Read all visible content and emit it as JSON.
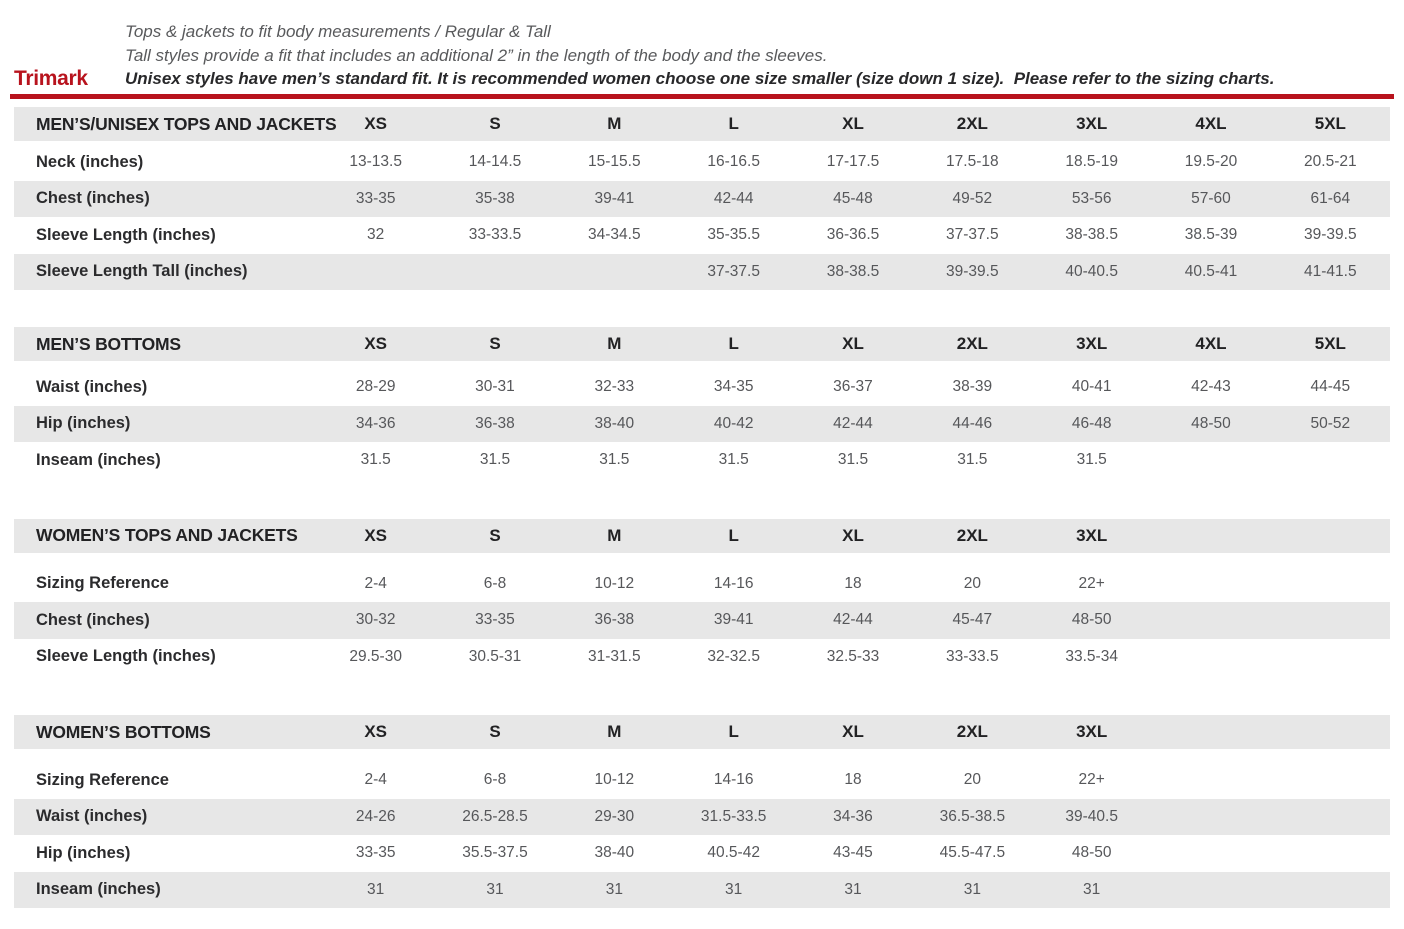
{
  "colors": {
    "brand_red": "#b8131d",
    "row_stripe": "#e7e7e7"
  },
  "brand": {
    "name": "Trimark"
  },
  "intro": {
    "line1": "Tops & jackets to fit body measurements / Regular & Tall",
    "line2": "Tall styles provide a fit that includes an additional 2” in the length of the body and the sleeves.",
    "line3": "Unisex styles have men’s standard fit. It is recommended women choose one size smaller (size down 1 size).  Please refer to the sizing charts."
  },
  "tables": [
    {
      "title": "MEN’S/UNISEX TOPS AND JACKETS",
      "sizes": [
        "XS",
        "S",
        "M",
        "L",
        "XL",
        "2XL",
        "3XL",
        "4XL",
        "5XL"
      ],
      "rows": [
        {
          "label": "Neck (inches)",
          "values": [
            "13-13.5",
            "14-14.5",
            "15-15.5",
            "16-16.5",
            "17-17.5",
            "17.5-18",
            "18.5-19",
            "19.5-20",
            "20.5-21"
          ]
        },
        {
          "label": "Chest (inches)",
          "values": [
            "33-35",
            "35-38",
            "39-41",
            "42-44",
            "45-48",
            "49-52",
            "53-56",
            "57-60",
            "61-64"
          ]
        },
        {
          "label": "Sleeve Length (inches)",
          "values": [
            "32",
            "33-33.5",
            "34-34.5",
            "35-35.5",
            "36-36.5",
            "37-37.5",
            "38-38.5",
            "38.5-39",
            "39-39.5"
          ]
        },
        {
          "label": "Sleeve Length Tall (inches)",
          "values": [
            "",
            "",
            "",
            "37-37.5",
            "38-38.5",
            "39-39.5",
            "40-40.5",
            "40.5-41",
            "41-41.5"
          ]
        }
      ]
    },
    {
      "title": "MEN’S BOTTOMS",
      "sizes": [
        "XS",
        "S",
        "M",
        "L",
        "XL",
        "2XL",
        "3XL",
        "4XL",
        "5XL"
      ],
      "rows": [
        {
          "label": "Waist (inches)",
          "values": [
            "28-29",
            "30-31",
            "32-33",
            "34-35",
            "36-37",
            "38-39",
            "40-41",
            "42-43",
            "44-45"
          ]
        },
        {
          "label": "Hip (inches)",
          "values": [
            "34-36",
            "36-38",
            "38-40",
            "40-42",
            "42-44",
            "44-46",
            "46-48",
            "48-50",
            "50-52"
          ]
        },
        {
          "label": "Inseam (inches)",
          "values": [
            "31.5",
            "31.5",
            "31.5",
            "31.5",
            "31.5",
            "31.5",
            "31.5",
            "",
            ""
          ]
        }
      ]
    },
    {
      "title": "WOMEN’S TOPS AND JACKETS",
      "sizes": [
        "XS",
        "S",
        "M",
        "L",
        "XL",
        "2XL",
        "3XL"
      ],
      "rows": [
        {
          "label": "Sizing Reference",
          "values": [
            "2-4",
            "6-8",
            "10-12",
            "14-16",
            "18",
            "20",
            "22+"
          ]
        },
        {
          "label": "Chest (inches)",
          "values": [
            "30-32",
            "33-35",
            "36-38",
            "39-41",
            "42-44",
            "45-47",
            "48-50"
          ]
        },
        {
          "label": "Sleeve Length (inches)",
          "values": [
            "29.5-30",
            "30.5-31",
            "31-31.5",
            "32-32.5",
            "32.5-33",
            "33-33.5",
            "33.5-34"
          ]
        }
      ]
    },
    {
      "title": "WOMEN’S BOTTOMS",
      "sizes": [
        "XS",
        "S",
        "M",
        "L",
        "XL",
        "2XL",
        "3XL"
      ],
      "rows": [
        {
          "label": "Sizing Reference",
          "values": [
            "2-4",
            "6-8",
            "10-12",
            "14-16",
            "18",
            "20",
            "22+"
          ]
        },
        {
          "label": "Waist (inches)",
          "values": [
            "24-26",
            "26.5-28.5",
            "29-30",
            "31.5-33.5",
            "34-36",
            "36.5-38.5",
            "39-40.5"
          ]
        },
        {
          "label": "Hip (inches)",
          "values": [
            "33-35",
            "35.5-37.5",
            "38-40",
            "40.5-42",
            "43-45",
            "45.5-47.5",
            "48-50"
          ]
        },
        {
          "label": "Inseam (inches)",
          "values": [
            "31",
            "31",
            "31",
            "31",
            "31",
            "31",
            "31"
          ]
        }
      ]
    }
  ]
}
